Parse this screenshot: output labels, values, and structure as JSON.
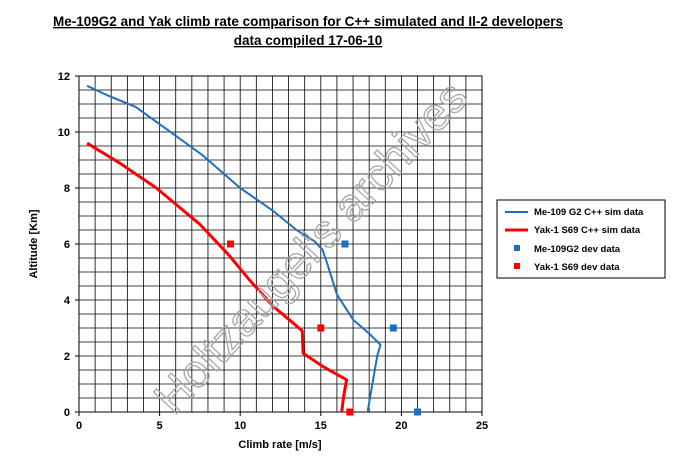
{
  "chart_data": {
    "type": "line",
    "title": "Me-109G2 and Yak climb rate comparison for C++ simulated and Il-2 developers",
    "subtitle": "data compiled 17-06-10",
    "xlabel": "Climb rate  [m/s]",
    "ylabel": "Altitude [Km]",
    "xlim": [
      0,
      25
    ],
    "ylim": [
      0,
      12
    ],
    "x_ticks": [
      "0",
      "5",
      "10",
      "15",
      "20",
      "25"
    ],
    "y_ticks": [
      "0",
      "2",
      "4",
      "6",
      "8",
      "10",
      "12"
    ],
    "grid": true,
    "legend_position": "right",
    "watermark": "Holtzaugel's archives",
    "series": [
      {
        "name": "Me-109 G2 C++ sim data",
        "kind": "line",
        "color": "#1f6fbf",
        "points": [
          [
            17.9,
            0
          ],
          [
            18.2,
            1
          ],
          [
            18.5,
            2
          ],
          [
            18.7,
            2.4
          ],
          [
            18.0,
            2.8
          ],
          [
            17.0,
            3.3
          ],
          [
            16.0,
            4.2
          ],
          [
            15.4,
            5.3
          ],
          [
            15.1,
            5.8
          ],
          [
            14.6,
            6.1
          ],
          [
            13.5,
            6.5
          ],
          [
            12.0,
            7.2
          ],
          [
            10.0,
            8.0
          ],
          [
            7.6,
            9.2
          ],
          [
            5.2,
            10.2
          ],
          [
            3.5,
            10.9
          ],
          [
            1.8,
            11.3
          ],
          [
            0.5,
            11.65
          ]
        ]
      },
      {
        "name": "Yak-1  S69 C++ sim data",
        "kind": "line",
        "color": "#ff0000",
        "points": [
          [
            16.3,
            0
          ],
          [
            16.4,
            0.5
          ],
          [
            16.6,
            1.15
          ],
          [
            15.2,
            1.6
          ],
          [
            13.9,
            2.1
          ],
          [
            13.85,
            2.9
          ],
          [
            12.0,
            3.8
          ],
          [
            10.6,
            4.7
          ],
          [
            9.3,
            5.6
          ],
          [
            7.5,
            6.7
          ],
          [
            4.8,
            8.0
          ],
          [
            2.5,
            8.9
          ],
          [
            0.5,
            9.6
          ]
        ]
      },
      {
        "name": "Me-109G2 dev data",
        "kind": "scatter",
        "color": "#1f6fbf",
        "points": [
          [
            21.0,
            0
          ],
          [
            19.5,
            3
          ],
          [
            16.5,
            6
          ]
        ]
      },
      {
        "name": "Yak-1  S69 dev data",
        "kind": "scatter",
        "color": "#ff0000",
        "points": [
          [
            16.8,
            0
          ],
          [
            15.0,
            3
          ],
          [
            9.4,
            6
          ]
        ]
      }
    ]
  }
}
